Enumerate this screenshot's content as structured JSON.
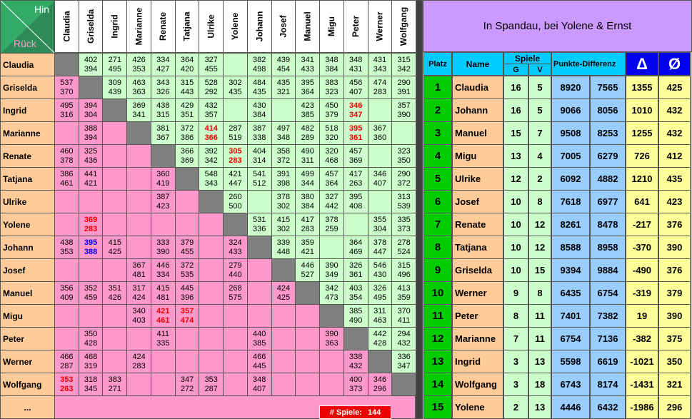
{
  "grid": {
    "hin": "Hin",
    "rueck": "Rück",
    "columns": [
      "Claudia",
      "Griselda",
      "Ingrid",
      "Marianne",
      "Renate",
      "Tatjana",
      "Ulrike",
      "Yolene",
      "Johann",
      "Josef",
      "Manuel",
      "Migu",
      "Peter",
      "Werner",
      "Wolfgang"
    ],
    "rows": [
      {
        "name": "Claudia",
        "cells": [
          null,
          [
            402,
            394
          ],
          [
            271,
            495
          ],
          [
            426,
            353
          ],
          [
            334,
            427
          ],
          [
            364,
            420
          ],
          [
            327,
            455
          ],
          null,
          [
            382,
            498
          ],
          [
            439,
            454
          ],
          [
            341,
            433
          ],
          [
            348,
            384
          ],
          [
            348,
            431
          ],
          [
            431,
            343
          ],
          [
            315,
            342
          ]
        ]
      },
      {
        "name": "Griselda",
        "cells": [
          [
            537,
            370
          ],
          null,
          [
            309,
            439
          ],
          [
            463,
            363
          ],
          [
            343,
            326
          ],
          [
            315,
            443
          ],
          [
            528,
            292
          ],
          [
            302,
            435
          ],
          [
            484,
            435
          ],
          [
            435,
            321
          ],
          [
            395,
            364
          ],
          [
            383,
            323
          ],
          [
            456,
            407
          ],
          [
            474,
            283
          ],
          [
            290,
            391
          ]
        ]
      },
      {
        "name": "Ingrid",
        "cells": [
          [
            495,
            316
          ],
          [
            394,
            304
          ],
          null,
          [
            369,
            341
          ],
          [
            438,
            315
          ],
          [
            429,
            351
          ],
          [
            432,
            357
          ],
          null,
          [
            430,
            384
          ],
          null,
          [
            423,
            385
          ],
          [
            450,
            379
          ],
          [
            346,
            347,
            "#ee0000"
          ],
          null,
          [
            357,
            390
          ]
        ]
      },
      {
        "name": "Marianne",
        "cells": [
          null,
          [
            388,
            394
          ],
          null,
          null,
          [
            381,
            367
          ],
          [
            372,
            386
          ],
          [
            414,
            366,
            "#ee0000"
          ],
          [
            287,
            519
          ],
          [
            387,
            338
          ],
          [
            497,
            348
          ],
          [
            482,
            289
          ],
          [
            518,
            320
          ],
          [
            395,
            361,
            "#ee0000"
          ],
          [
            367,
            360
          ],
          null
        ]
      },
      {
        "name": "Renate",
        "cells": [
          [
            460,
            378
          ],
          [
            325,
            436
          ],
          null,
          null,
          null,
          [
            366,
            369
          ],
          [
            392,
            342
          ],
          [
            305,
            283,
            "#ee0000"
          ],
          [
            404,
            314
          ],
          [
            358,
            372
          ],
          [
            490,
            311
          ],
          [
            320,
            468
          ],
          [
            457,
            369
          ],
          null,
          [
            323,
            350
          ]
        ]
      },
      {
        "name": "Tatjana",
        "cells": [
          [
            386,
            461
          ],
          [
            441,
            421
          ],
          null,
          null,
          [
            360,
            419
          ],
          null,
          [
            548,
            343
          ],
          [
            421,
            447
          ],
          [
            541,
            512
          ],
          [
            391,
            398
          ],
          [
            499,
            344
          ],
          [
            457,
            364
          ],
          [
            417,
            263
          ],
          [
            346,
            407
          ],
          [
            290,
            372
          ]
        ]
      },
      {
        "name": "Ulrike",
        "cells": [
          null,
          null,
          null,
          null,
          [
            387,
            423
          ],
          null,
          null,
          [
            260,
            500
          ],
          null,
          [
            378,
            302
          ],
          [
            380,
            384
          ],
          [
            327,
            442
          ],
          [
            395,
            408
          ],
          null,
          [
            313,
            539
          ]
        ]
      },
      {
        "name": "Yolene",
        "cells": [
          null,
          [
            369,
            283,
            "#ee0000"
          ],
          null,
          null,
          null,
          null,
          null,
          null,
          [
            531,
            336
          ],
          [
            415,
            302
          ],
          [
            417,
            283
          ],
          [
            378,
            259
          ],
          null,
          [
            355,
            304
          ],
          [
            335,
            373
          ]
        ]
      },
      {
        "name": "Johann",
        "cells": [
          [
            438,
            353
          ],
          [
            395,
            388,
            "#0000ee"
          ],
          [
            415,
            425
          ],
          null,
          [
            333,
            390
          ],
          [
            379,
            455
          ],
          null,
          [
            324,
            433
          ],
          null,
          [
            339,
            448
          ],
          [
            359,
            421
          ],
          null,
          [
            364,
            469
          ],
          [
            378,
            447
          ],
          [
            278,
            524
          ]
        ]
      },
      {
        "name": "Josef",
        "cells": [
          null,
          null,
          null,
          [
            367,
            481
          ],
          [
            446,
            334
          ],
          [
            372,
            535
          ],
          null,
          [
            279,
            440
          ],
          null,
          null,
          [
            446,
            527
          ],
          [
            390,
            349
          ],
          [
            326,
            361
          ],
          [
            546,
            430
          ],
          [
            315,
            496
          ]
        ]
      },
      {
        "name": "Manuel",
        "cells": [
          [
            356,
            409
          ],
          [
            352,
            459
          ],
          [
            351,
            426
          ],
          [
            317,
            424
          ],
          [
            415,
            481
          ],
          [
            445,
            396
          ],
          null,
          [
            268,
            575
          ],
          null,
          [
            424,
            425
          ],
          null,
          [
            342,
            473
          ],
          [
            403,
            354
          ],
          [
            326,
            495
          ],
          [
            413,
            359
          ]
        ]
      },
      {
        "name": "Migu",
        "cells": [
          null,
          null,
          null,
          [
            340,
            403
          ],
          [
            421,
            461,
            "#ee0000"
          ],
          [
            357,
            474,
            "#ee0000"
          ],
          null,
          null,
          null,
          null,
          null,
          null,
          [
            385,
            490
          ],
          [
            311,
            463
          ],
          [
            370,
            411
          ]
        ]
      },
      {
        "name": "Peter",
        "cells": [
          null,
          [
            350,
            428
          ],
          null,
          null,
          [
            411,
            335
          ],
          null,
          null,
          null,
          [
            440,
            385
          ],
          null,
          null,
          [
            390,
            363
          ],
          null,
          [
            442,
            428
          ],
          [
            294,
            432
          ]
        ]
      },
      {
        "name": "Werner",
        "cells": [
          [
            466,
            287
          ],
          [
            468,
            319
          ],
          null,
          [
            424,
            283
          ],
          null,
          null,
          null,
          null,
          [
            466,
            445
          ],
          null,
          null,
          null,
          [
            338,
            432
          ],
          null,
          [
            336,
            347
          ]
        ]
      },
      {
        "name": "Wolfgang",
        "cells": [
          [
            353,
            263,
            "#ee0000"
          ],
          [
            318,
            345
          ],
          [
            383,
            271
          ],
          null,
          null,
          [
            347,
            272
          ],
          [
            353,
            287
          ],
          null,
          [
            348,
            407
          ],
          null,
          null,
          null,
          [
            400,
            373
          ],
          [
            346,
            296
          ],
          null
        ]
      }
    ],
    "more": "...",
    "games_label": "# Spiele:",
    "games": 144
  },
  "standings": {
    "title": "In Spandau, bei Yolene & Ernst",
    "headers": {
      "platz": "Platz",
      "name": "Name",
      "spiele": "Spiele",
      "g": "G",
      "v": "V",
      "pd": "Punkte-Differenz",
      "delta": "Δ",
      "avg": "Ø"
    },
    "rows": [
      [
        1,
        "Claudia",
        16,
        5,
        8920,
        7565,
        1355,
        425
      ],
      [
        2,
        "Johann",
        16,
        5,
        9066,
        8056,
        1010,
        432
      ],
      [
        3,
        "Manuel",
        15,
        7,
        9508,
        8253,
        1255,
        432
      ],
      [
        4,
        "Migu",
        13,
        4,
        7005,
        6279,
        726,
        412
      ],
      [
        5,
        "Ulrike",
        12,
        2,
        6092,
        4882,
        1210,
        435
      ],
      [
        6,
        "Josef",
        10,
        8,
        7618,
        6977,
        641,
        423
      ],
      [
        7,
        "Renate",
        10,
        12,
        8261,
        8478,
        -217,
        376
      ],
      [
        8,
        "Tatjana",
        10,
        12,
        8588,
        8958,
        -370,
        390
      ],
      [
        9,
        "Griselda",
        10,
        15,
        9394,
        9884,
        -490,
        376
      ],
      [
        10,
        "Werner",
        9,
        8,
        6435,
        6754,
        -319,
        379
      ],
      [
        11,
        "Peter",
        8,
        11,
        7401,
        7382,
        19,
        390
      ],
      [
        12,
        "Marianne",
        7,
        11,
        6754,
        7136,
        -382,
        375
      ],
      [
        13,
        "Ingrid",
        3,
        13,
        5598,
        6619,
        -1021,
        350
      ],
      [
        14,
        "Wolfgang",
        3,
        18,
        6743,
        8174,
        -1431,
        321
      ],
      [
        15,
        "Yolene",
        2,
        13,
        4446,
        6432,
        -1986,
        296
      ]
    ]
  }
}
